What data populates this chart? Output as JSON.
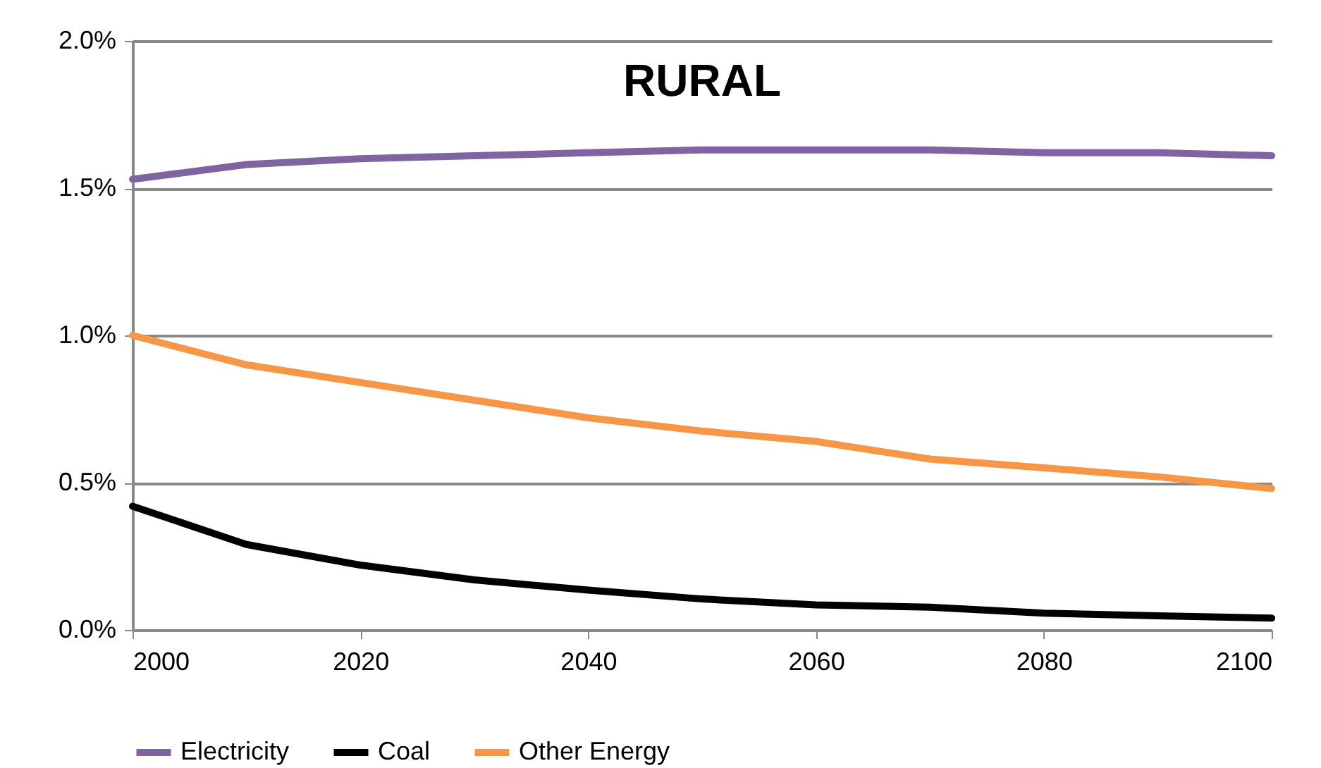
{
  "chart_data": {
    "type": "line",
    "title": "RURAL",
    "x": [
      2000,
      2010,
      2020,
      2030,
      2040,
      2050,
      2060,
      2070,
      2080,
      2090,
      2100
    ],
    "series": [
      {
        "name": "Electricity",
        "color": "#8064a2",
        "values": [
          1.53,
          1.58,
          1.6,
          1.61,
          1.62,
          1.63,
          1.63,
          1.63,
          1.62,
          1.62,
          1.61
        ]
      },
      {
        "name": "Coal",
        "color": "#000000",
        "values": [
          0.42,
          0.29,
          0.22,
          0.17,
          0.135,
          0.105,
          0.085,
          0.077,
          0.057,
          0.048,
          0.04
        ]
      },
      {
        "name": "Other Energy",
        "color": "#f79646",
        "values": [
          1.0,
          0.9,
          0.84,
          0.78,
          0.72,
          0.675,
          0.64,
          0.58,
          0.55,
          0.52,
          0.48
        ]
      }
    ],
    "xlim": [
      2000,
      2100
    ],
    "xticks": [
      2000,
      2020,
      2040,
      2060,
      2080,
      2100
    ],
    "ylim": [
      0,
      2
    ],
    "yticks": [
      {
        "value": 0,
        "label": "0.0%"
      },
      {
        "value": 0.5,
        "label": "0.5%"
      },
      {
        "value": 1,
        "label": "1.0%"
      },
      {
        "value": 1.5,
        "label": "1.5%"
      },
      {
        "value": 2,
        "label": "2.0%"
      }
    ],
    "grid": "y",
    "legend": "bottom",
    "marker": "none",
    "line_style": "solid"
  }
}
